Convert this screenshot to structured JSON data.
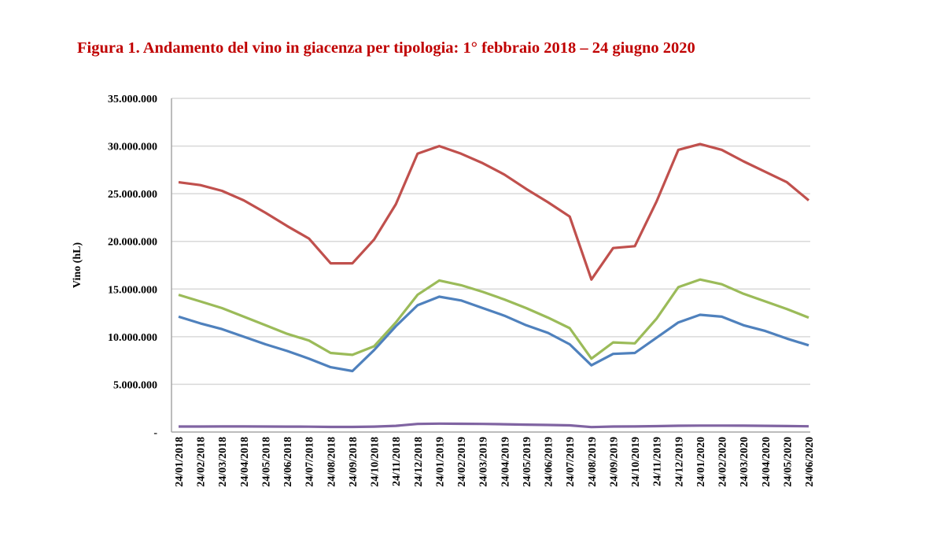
{
  "title": "Figura 1. Andamento del vino in giacenza per tipologia: 1° febbraio 2018 – 24 giugno 2020",
  "chart_data": {
    "type": "line",
    "title": "Figura 1. Andamento del vino in giacenza per tipologia: 1° febbraio 2018 – 24 giugno 2020",
    "xlabel": "",
    "ylabel": "Vino (hL)",
    "ylim": [
      0,
      35000000
    ],
    "yticks": [
      0,
      5000000,
      10000000,
      15000000,
      20000000,
      25000000,
      30000000,
      35000000
    ],
    "ytick_labels": [
      "-",
      "5.000.000",
      "10.000.000",
      "15.000.000",
      "20.000.000",
      "25.000.000",
      "30.000.000",
      "35.000.000"
    ],
    "grid": "horizontal",
    "legend": "none",
    "categories": [
      "24/01/2018",
      "24/02/2018",
      "24/03/2018",
      "24/04/2018",
      "24/05/2018",
      "24/06/2018",
      "24/07/2018",
      "24/08/2018",
      "24/09/2018",
      "24/10/2018",
      "24/11/2018",
      "24/12/2018",
      "24/01/2019",
      "24/02/2019",
      "24/03/2019",
      "24/04/2019",
      "24/05/2019",
      "24/06/2019",
      "24/07/2019",
      "24/08/2019",
      "24/09/2019",
      "24/10/2019",
      "24/11/2019",
      "24/12/2019",
      "24/01/2020",
      "24/02/2020",
      "24/03/2020",
      "24/04/2020",
      "24/05/2020",
      "24/06/2020"
    ],
    "series": [
      {
        "color": "#C0504D",
        "values": [
          26200000,
          25900000,
          25300000,
          24300000,
          23000000,
          21600000,
          20300000,
          17700000,
          17700000,
          20200000,
          23900000,
          29200000,
          30000000,
          29200000,
          28200000,
          27000000,
          25500000,
          24100000,
          22600000,
          16000000,
          19300000,
          19500000,
          24200000,
          29600000,
          30200000,
          29600000,
          28400000,
          27300000,
          26200000,
          24300000
        ]
      },
      {
        "color": "#9BBB59",
        "values": [
          14400000,
          13700000,
          13000000,
          12100000,
          11200000,
          10300000,
          9600000,
          8300000,
          8100000,
          9000000,
          11500000,
          14400000,
          15900000,
          15400000,
          14700000,
          13900000,
          13000000,
          12000000,
          10900000,
          7700000,
          9400000,
          9300000,
          11900000,
          15200000,
          16000000,
          15500000,
          14500000,
          13700000,
          12900000,
          12000000
        ]
      },
      {
        "color": "#4F81BD",
        "values": [
          12100000,
          11400000,
          10800000,
          10000000,
          9200000,
          8500000,
          7700000,
          6800000,
          6400000,
          8600000,
          11100000,
          13300000,
          14200000,
          13800000,
          13000000,
          12200000,
          11200000,
          10400000,
          9200000,
          7000000,
          8200000,
          8300000,
          9900000,
          11500000,
          12300000,
          12100000,
          11200000,
          10600000,
          9800000,
          9100000
        ]
      },
      {
        "color": "#8064A2",
        "values": [
          580000,
          580000,
          590000,
          590000,
          580000,
          570000,
          560000,
          540000,
          540000,
          570000,
          650000,
          850000,
          880000,
          870000,
          850000,
          820000,
          780000,
          740000,
          700000,
          520000,
          580000,
          590000,
          620000,
          660000,
          680000,
          680000,
          670000,
          650000,
          630000,
          600000
        ]
      }
    ]
  }
}
